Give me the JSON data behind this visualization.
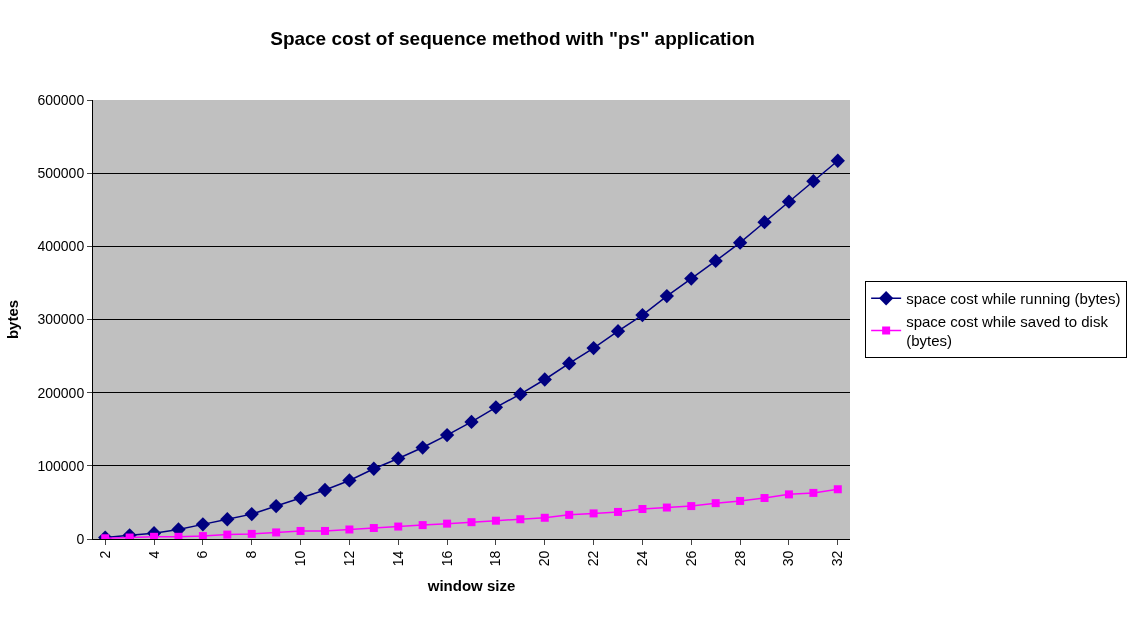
{
  "chart_data": {
    "type": "line",
    "title": "Space cost of sequence method with \"ps\" application",
    "xlabel": "window size",
    "ylabel": "bytes",
    "categories": [
      "2",
      null,
      "4",
      null,
      "6",
      null,
      "8",
      null,
      "10",
      null,
      "12",
      null,
      "14",
      null,
      "16",
      null,
      "18",
      null,
      "20",
      null,
      "22",
      null,
      "24",
      null,
      "26",
      null,
      "28",
      null,
      "30",
      null,
      "32"
    ],
    "series": [
      {
        "name": "space cost while running (bytes)",
        "color": "#000080",
        "marker": "diamond",
        "values": [
          2000,
          5000,
          8000,
          13000,
          20000,
          27000,
          34000,
          45000,
          56000,
          67000,
          80000,
          96000,
          110000,
          125000,
          142000,
          160000,
          180000,
          198000,
          218000,
          240000,
          261000,
          284000,
          306000,
          332000,
          356000,
          380000,
          405000,
          433000,
          461000,
          489000,
          517000
        ]
      },
      {
        "name": "space cost while saved to disk (bytes)",
        "color": "#ff00ff",
        "marker": "square",
        "values": [
          1000,
          2000,
          3000,
          3000,
          4000,
          6000,
          7000,
          9000,
          11000,
          11000,
          13000,
          15000,
          17000,
          19000,
          21000,
          23000,
          25000,
          27000,
          29000,
          33000,
          35000,
          37000,
          41000,
          43000,
          45000,
          49000,
          52000,
          56000,
          61000,
          63000,
          68000
        ]
      }
    ],
    "ylim": [
      0,
      600000
    ],
    "yticks": [
      0,
      100000,
      200000,
      300000,
      400000,
      500000,
      600000
    ],
    "grid": "y",
    "legend": "right",
    "line_style": "solid"
  }
}
